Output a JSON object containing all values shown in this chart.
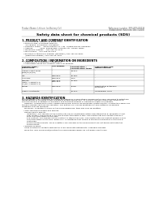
{
  "bg_color": "#ffffff",
  "header_left": "Product Name: Lithium Ion Battery Cell",
  "header_right_line1": "Reference number: SRS-SDS-00018",
  "header_right_line2": "Established / Revision: Dec.7,2016",
  "title": "Safety data sheet for chemical products (SDS)",
  "section1_title": "1. PRODUCT AND COMPANY IDENTIFICATION",
  "section1_lines": [
    "  • Product name: Lithium Ion Battery Cell",
    "  • Product code: Cylindrical-type cell",
    "      SYF-B6500, SYF-B6500, SYF-B650A",
    "  • Company name:    Sanyo Electric Co., Ltd.  Mobile Energy Company",
    "  • Address:           2031, Kannazawa, Sumoto City, Hyogo, Japan",
    "  • Telephone number:   +81-799-26-4111",
    "  • Fax number:   +81-799-26-4123",
    "  • Emergency telephone number (Weekday) +81-799-26-3562",
    "      (Night and holiday) +81-799-26-4101"
  ],
  "section2_title": "2. COMPOSITION / INFORMATION ON INGREDIENTS",
  "section2_sub1": "  • Substance or preparation: Preparation",
  "section2_sub2": "  • Information about the chemical nature of product:",
  "table_col_headers": [
    "Common name /\nBrand name",
    "CAS number",
    "Concentration /\nConcentration range",
    "Classification and\nhazard labeling"
  ],
  "table_rows": [
    [
      "Lithium cobalt oxide\n(LiMn/Co/Ni/O4)",
      "-",
      "30-60%",
      "-"
    ],
    [
      "Iron",
      "7439-89-6",
      "15-25%",
      "-"
    ],
    [
      "Aluminum",
      "7429-90-5",
      "2-6%",
      "-"
    ],
    [
      "Graphite\n(Metal in graphite-1)\n(Al/Mn in graphite-1)",
      "7782-42-5\n1343-44-2",
      "10-25%",
      "-"
    ],
    [
      "Copper",
      "7440-50-8",
      "5-15%",
      "Sensitization of the skin\ngroup No.2"
    ],
    [
      "Organic electrolyte",
      "-",
      "10-20%",
      "Inflammable liquid"
    ]
  ],
  "section3_title": "3. HAZARDS IDENTIFICATION",
  "section3_para1": [
    "For the battery cell, chemical materials are stored in a hermetically sealed metal case, designed to withstand",
    "temperatures in thermite-series conditions during normal use. As a result, during normal use, there is no",
    "physical danger of ignition or explosion and thermodynamics of hazardous materials leakage.",
    "    However, if exposed to a fire, added mechanical shocks, decomposed, erratic electric, electric tiny wires use,",
    "the gas release vent can be operated. The battery cell can be breathed out fire-patterns, hazardous",
    "materials may be released.",
    "    Moreover, if heated strongly by the surrounding fire, toxic gas may be emitted."
  ],
  "section3_hazard_title": "  • Most important hazard and effects:",
  "section3_hazard_lines": [
    "    Human health effects:",
    "        Inhalation: The release of the electrolyte has an anesthesia action and stimulates in respiratory tract.",
    "        Skin contact: The release of the electrolyte stimulates a skin. The electrolyte skin contact causes a",
    "        sore and stimulation on the skin.",
    "        Eye contact: The release of the electrolyte stimulates eyes. The electrolyte eye contact causes a sore",
    "        and stimulation on the eye. Especially, a substance that causes a strong inflammation of the eye is",
    "        contained.",
    "        Environmental effects: Since a battery cell remains in the environment, do not throw out it into the",
    "        environment."
  ],
  "section3_specific_title": "  • Specific hazards:",
  "section3_specific_lines": [
    "    If the electrolyte contacts with water, it will generate detrimental hydrogen fluoride.",
    "    Since the lead component/electrolyte is inflammable liquid, do not bring close to fire."
  ]
}
